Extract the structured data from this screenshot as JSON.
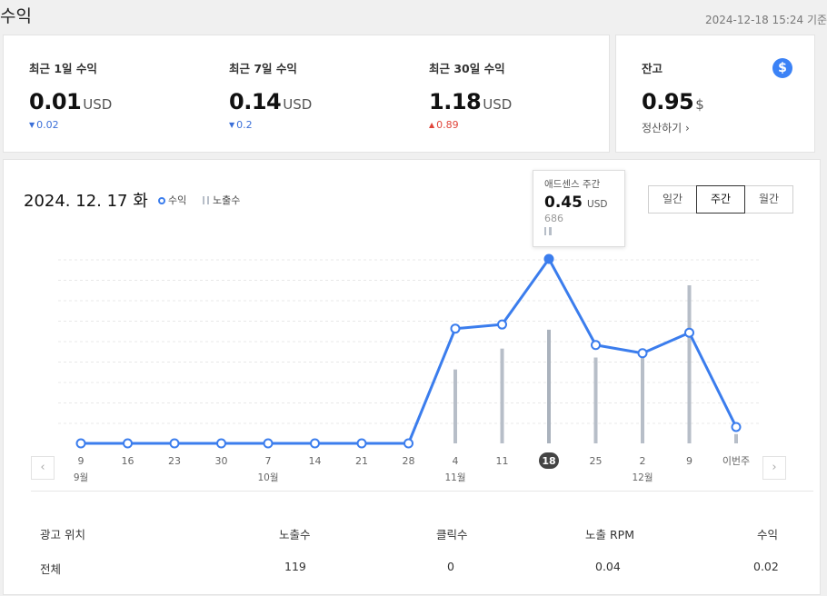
{
  "header": {
    "title": "수익",
    "timestamp": "2024-12-18 15:24 기준"
  },
  "summary": {
    "day1": {
      "label": "최근 1일 수익",
      "value": "0.01",
      "unit": "USD",
      "change": "0.02",
      "direction": "down"
    },
    "day7": {
      "label": "최근 7일 수익",
      "value": "0.14",
      "unit": "USD",
      "change": "0.2",
      "direction": "down"
    },
    "day30": {
      "label": "최근 30일 수익",
      "value": "1.18",
      "unit": "USD",
      "change": "0.89",
      "direction": "up"
    },
    "arrow_down": "▼",
    "arrow_up": "▲"
  },
  "balance": {
    "label": "잔고",
    "value": "0.95",
    "unit": "$",
    "badge": "$",
    "settle_label": "정산하기",
    "chevron": "›"
  },
  "chart": {
    "date": "2024. 12. 17 화",
    "legend_revenue": "수익",
    "legend_impressions": "노출수",
    "range_options": [
      "일간",
      "주간",
      "월간"
    ],
    "range_selected": "주간",
    "tooltip": {
      "title": "애드센스 주간",
      "value": "0.45",
      "unit": "USD",
      "impressions": "686"
    },
    "prev_icon": "‹",
    "next_icon": "›"
  },
  "chart_data": {
    "type": "line",
    "title": "",
    "x": [
      "9",
      "16",
      "23",
      "30",
      "7",
      "14",
      "21",
      "28",
      "4",
      "11",
      "18",
      "25",
      "2",
      "9",
      "이번주"
    ],
    "month_labels": [
      {
        "at": "9",
        "index": 0,
        "label": "9월"
      },
      {
        "at": "7",
        "index": 4,
        "label": "10월"
      },
      {
        "at": "4",
        "index": 8,
        "label": "11월"
      },
      {
        "at": "2",
        "index": 12,
        "label": "12월"
      }
    ],
    "highlighted": "18",
    "series": [
      {
        "name": "수익",
        "kind": "line",
        "color": "#3b7ded",
        "values": [
          0,
          0,
          0,
          0,
          0,
          0,
          0,
          0,
          0.28,
          0.29,
          0.45,
          0.24,
          0.22,
          0.27,
          0.04
        ]
      },
      {
        "name": "노출수",
        "kind": "bar",
        "color": "#b7bec8",
        "values": [
          0,
          0,
          0,
          0,
          0,
          0,
          0,
          0,
          446,
          572,
          686,
          518,
          566,
          954,
          56
        ]
      }
    ],
    "grid": true,
    "legend": "top-left"
  },
  "table": {
    "headers": [
      "광고 위치",
      "노출수",
      "클릭수",
      "노출 RPM",
      "수익"
    ],
    "rows": [
      [
        "전체",
        "119",
        "0",
        "0.04",
        "0.02"
      ]
    ]
  }
}
